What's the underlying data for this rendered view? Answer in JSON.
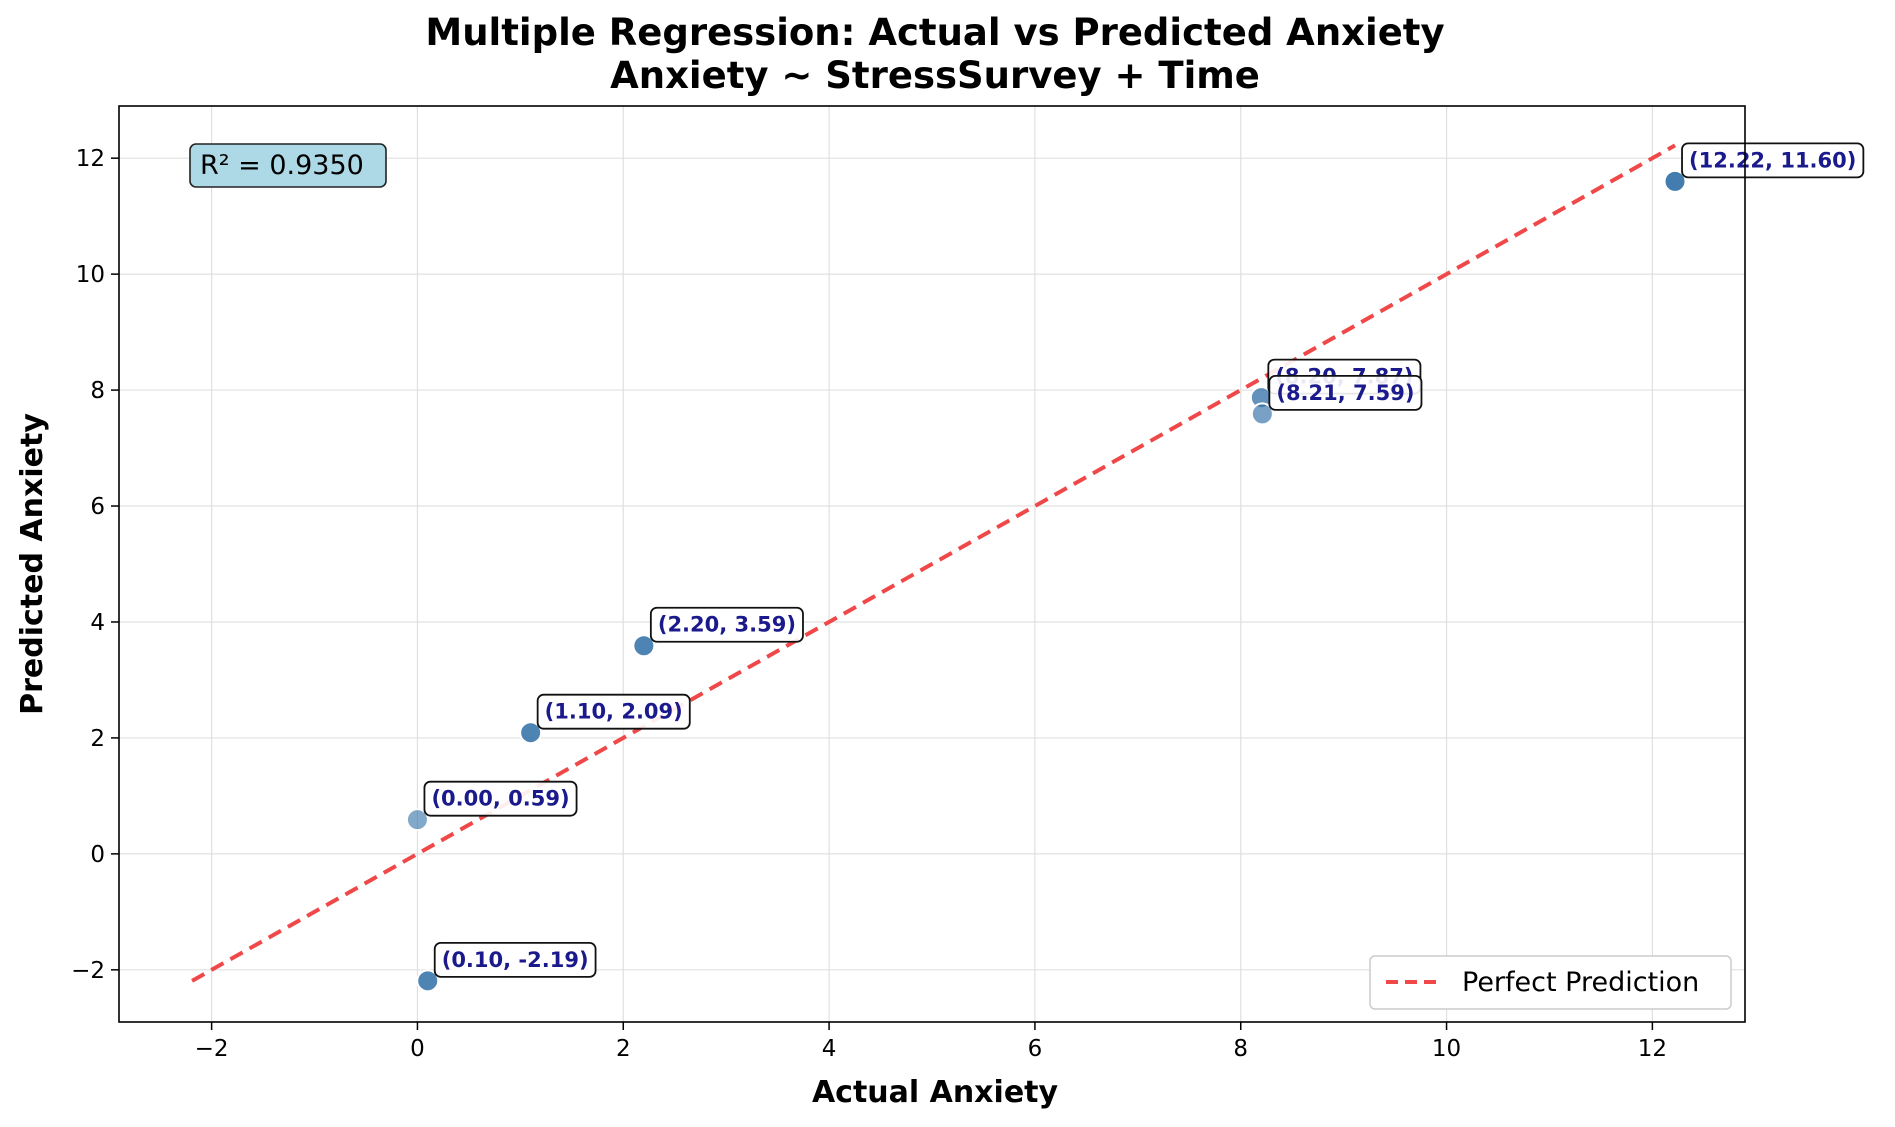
{
  "chart_data": {
    "type": "scatter",
    "title_line1": "Multiple Regression: Actual vs Predicted Anxiety",
    "title_line2": "Anxiety ~ StressSurvey + Time",
    "xlabel": "Actual Anxiety",
    "ylabel": "Predicted Anxiety",
    "xlim": [
      -2.9,
      12.9
    ],
    "ylim": [
      -2.9,
      12.9
    ],
    "xticks": [
      -2,
      0,
      2,
      4,
      6,
      8,
      10,
      12
    ],
    "yticks": [
      -2,
      0,
      2,
      4,
      6,
      8,
      10,
      12
    ],
    "tick_labels": [
      "−2",
      "0",
      "2",
      "4",
      "6",
      "8",
      "10",
      "12"
    ],
    "grid": true,
    "points": [
      {
        "x": 0.0,
        "y": 0.59,
        "label": "(0.00, 0.59)",
        "opacity": 0.6
      },
      {
        "x": 0.1,
        "y": -2.19,
        "label": "(0.10, -2.19)",
        "opacity": 0.85
      },
      {
        "x": 1.1,
        "y": 2.09,
        "label": "(1.10, 2.09)",
        "opacity": 0.85
      },
      {
        "x": 2.2,
        "y": 3.59,
        "label": "(2.20, 3.59)",
        "opacity": 0.85
      },
      {
        "x": 8.2,
        "y": 7.87,
        "label": "(8.20, 7.87)",
        "opacity": 0.75
      },
      {
        "x": 8.21,
        "y": 7.59,
        "label": "(8.21, 7.59)",
        "opacity": 0.65
      },
      {
        "x": 12.22,
        "y": 11.6,
        "label": "(12.22, 11.60)",
        "opacity": 0.9
      }
    ],
    "reference_line": {
      "name": "Perfect Prediction",
      "x": [
        -2.19,
        12.22
      ],
      "y": [
        -2.19,
        12.22
      ]
    },
    "r_squared_text": "R² = 0.9350",
    "legend_placement": "lower-right",
    "colors": {
      "point": "#2f6ea6",
      "point_edge": "#ffffff",
      "label_text": "#1a1a8c",
      "reference_line": "#f04848",
      "r2_box": "#add8e6",
      "grid": "#e0e0e0"
    }
  }
}
